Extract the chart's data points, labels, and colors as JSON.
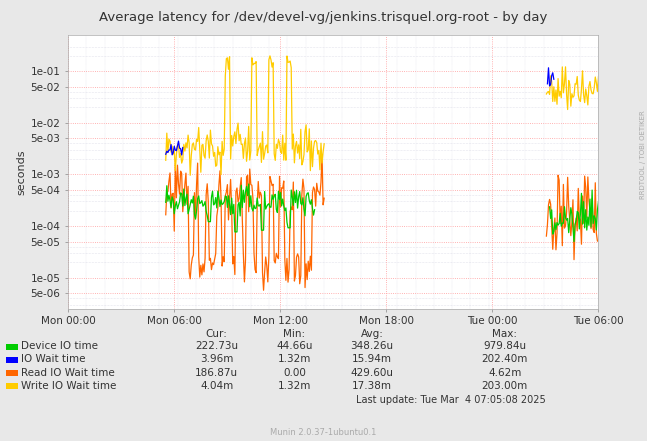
{
  "title": "Average latency for /dev/devel-vg/jenkins.trisquel.org-root - by day",
  "ylabel": "seconds",
  "right_label": "RRDTOOL / TOBI OETIKER",
  "bg_color": "#e8e8e8",
  "plot_bg_color": "#ffffff",
  "x_ticks_labels": [
    "Mon 00:00",
    "Mon 06:00",
    "Mon 12:00",
    "Mon 18:00",
    "Tue 00:00",
    "Tue 06:00"
  ],
  "y_ticks_major": [
    0.1,
    0.05,
    0.01,
    0.005,
    0.001,
    0.0005,
    0.0001,
    5e-05,
    1e-05,
    5e-06
  ],
  "y_ticks_labels": [
    "1e-01",
    "5e-02",
    "1e-02",
    "5e-03",
    "1e-03",
    "5e-04",
    "1e-04",
    "5e-05",
    "1e-05",
    "5e-06"
  ],
  "ylim_low": 2.5e-06,
  "ylim_high": 0.5,
  "legend_entries": [
    {
      "label": "Device IO time",
      "color": "#00cc00"
    },
    {
      "label": "IO Wait time",
      "color": "#0000ff"
    },
    {
      "label": "Read IO Wait time",
      "color": "#ff6600"
    },
    {
      "label": "Write IO Wait time",
      "color": "#ffcc00"
    }
  ],
  "stats_headers": [
    "Cur:",
    "Min:",
    "Avg:",
    "Max:"
  ],
  "stats_rows": [
    [
      "222.73u",
      "44.66u",
      "348.26u",
      "979.84u"
    ],
    [
      "3.96m",
      "1.32m",
      "15.94m",
      "202.40m"
    ],
    [
      "186.87u",
      "0.00",
      "429.60u",
      "4.62m"
    ],
    [
      "4.04m",
      "1.32m",
      "17.38m",
      "203.00m"
    ]
  ],
  "last_update": "Last update: Tue Mar  4 07:05:08 2025",
  "munin_version": "Munin 2.0.37-1ubuntu0.1"
}
